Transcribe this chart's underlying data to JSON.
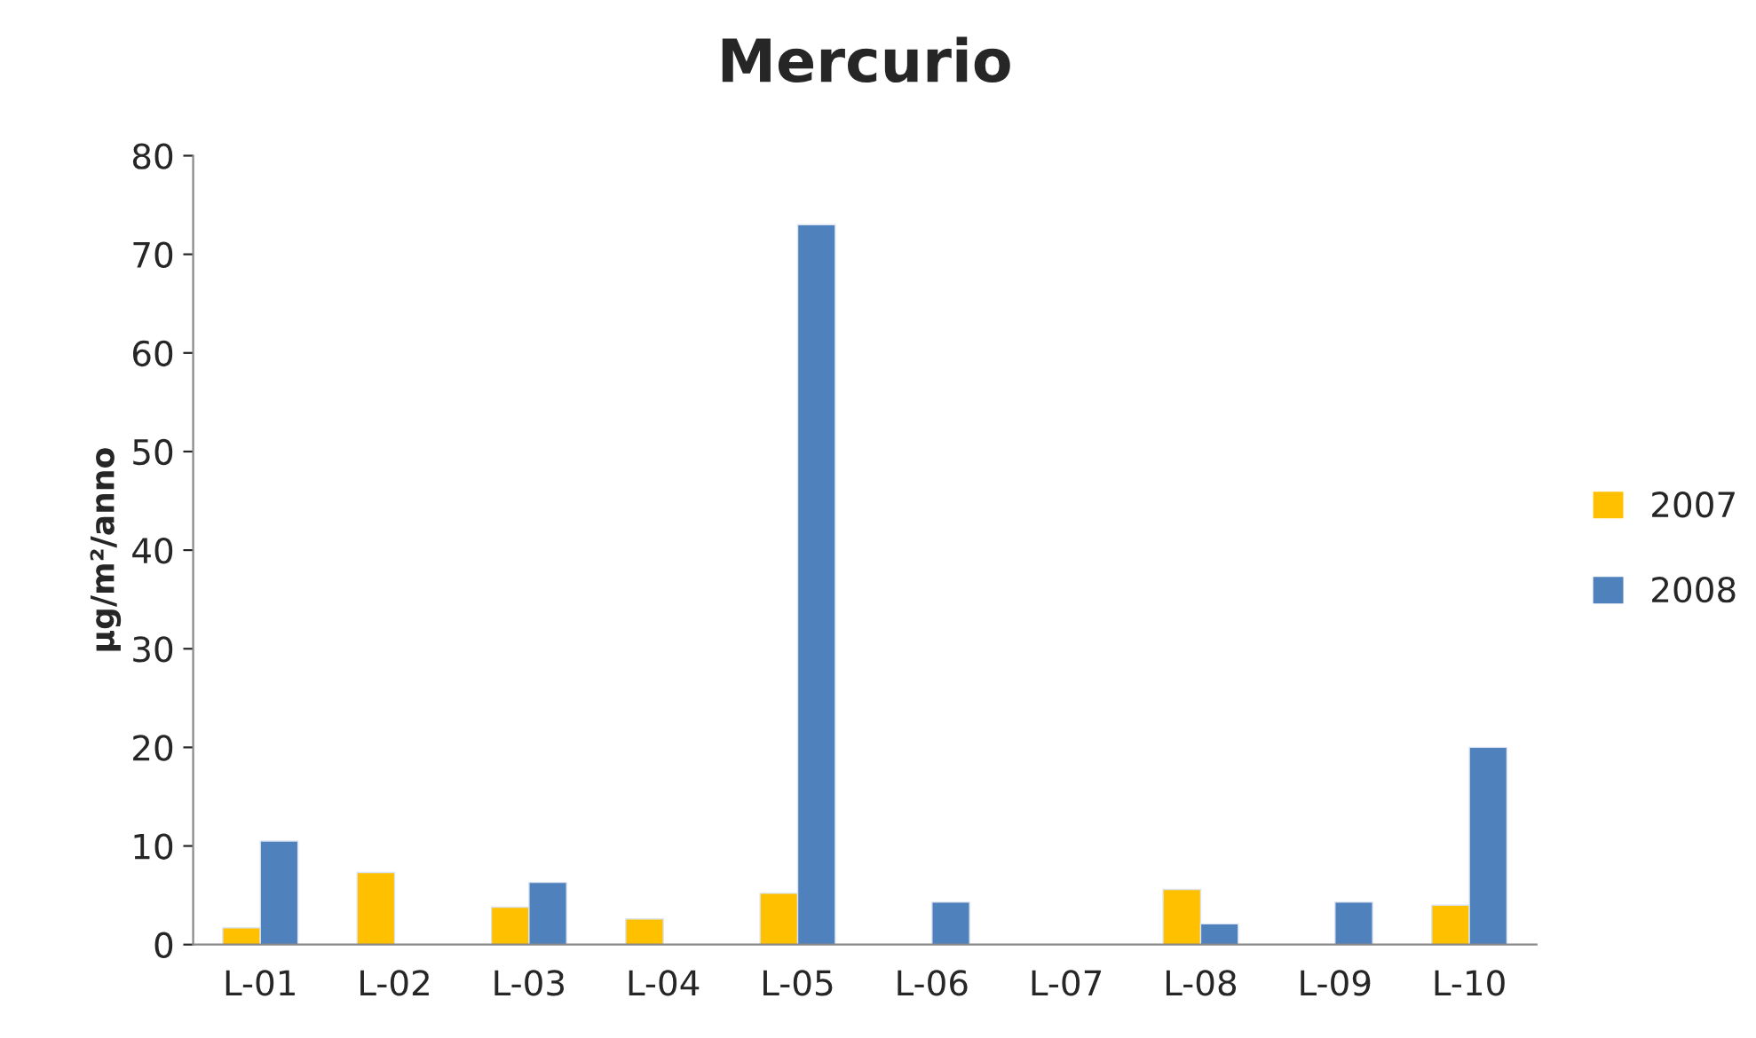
{
  "chart_data": {
    "type": "bar",
    "title": "Mercurio",
    "ylabel": "μg/m²/anno",
    "categories": [
      "L-01",
      "L-02",
      "L-03",
      "L-04",
      "L-05",
      "L-06",
      "L-07",
      "L-08",
      "L-09",
      "L-10"
    ],
    "series": [
      {
        "name": "2007",
        "color": "#ffc000",
        "values": [
          1.7,
          7.3,
          3.8,
          2.6,
          5.2,
          null,
          null,
          5.6,
          null,
          4.0
        ]
      },
      {
        "name": "2008",
        "color": "#4f81bd",
        "values": [
          10.5,
          null,
          6.3,
          null,
          73,
          4.3,
          null,
          2.1,
          4.3,
          20
        ]
      }
    ],
    "ylim": [
      0,
      80
    ],
    "yticks": [
      0,
      10,
      20,
      30,
      40,
      50,
      60,
      70,
      80
    ],
    "grid": false,
    "legend": "right"
  }
}
